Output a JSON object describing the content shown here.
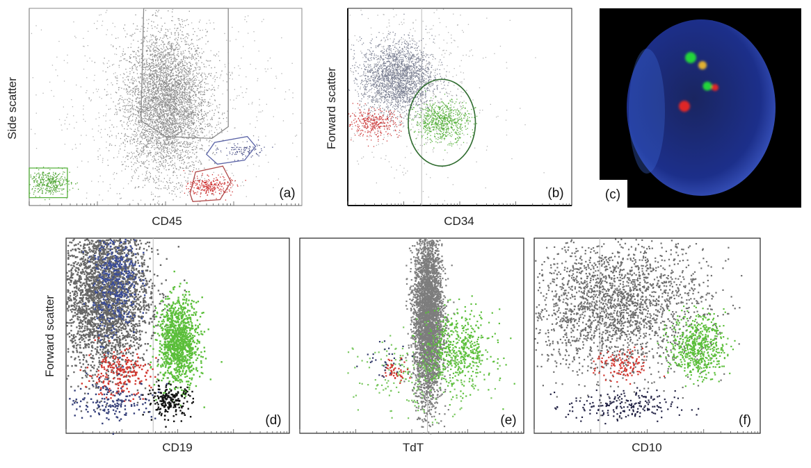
{
  "chart_data": [
    {
      "id": "a",
      "type": "scatter",
      "panel_label": "(a)",
      "xlabel": "CD45",
      "ylabel": "Side scatter",
      "log_x": true,
      "populations": [
        {
          "color": "#8a8a8a",
          "count": 4200,
          "cx": 0.5,
          "cy": 0.52,
          "sx": 0.075,
          "sy": 0.18
        },
        {
          "color": "#b0b0b0",
          "count": 900,
          "cx": 0.5,
          "cy": 0.5,
          "sx": 0.22,
          "sy": 0.25
        },
        {
          "color": "#55a83b",
          "count": 380,
          "cx": 0.07,
          "cy": 0.12,
          "sx": 0.04,
          "sy": 0.03
        },
        {
          "color": "#cc2a2a",
          "count": 260,
          "cx": 0.66,
          "cy": 0.1,
          "sx": 0.04,
          "sy": 0.025
        },
        {
          "color": "#4a5088",
          "count": 90,
          "cx": 0.78,
          "cy": 0.28,
          "sx": 0.04,
          "sy": 0.02
        }
      ],
      "gates": [
        {
          "color": "#8a8a8a",
          "points": [
            [
              0.42,
              1.0
            ],
            [
              0.73,
              1.0
            ],
            [
              0.73,
              0.4
            ],
            [
              0.67,
              0.34
            ],
            [
              0.5,
              0.35
            ],
            [
              0.41,
              0.43
            ]
          ]
        },
        {
          "color": "#5a63a6",
          "points": [
            [
              0.65,
              0.26
            ],
            [
              0.68,
              0.32
            ],
            [
              0.8,
              0.35
            ],
            [
              0.83,
              0.3
            ],
            [
              0.79,
              0.23
            ],
            [
              0.69,
              0.21
            ]
          ]
        },
        {
          "color": "#b04a4a",
          "points": [
            [
              0.59,
              0.06
            ],
            [
              0.61,
              0.17
            ],
            [
              0.71,
              0.2
            ],
            [
              0.74,
              0.12
            ],
            [
              0.7,
              0.03
            ],
            [
              0.6,
              0.02
            ]
          ]
        },
        {
          "color": "#55b03a",
          "points": [
            [
              0.0,
              0.04
            ],
            [
              0.14,
              0.04
            ],
            [
              0.14,
              0.19
            ],
            [
              0.0,
              0.19
            ]
          ]
        }
      ]
    },
    {
      "id": "b",
      "type": "scatter",
      "panel_label": "(b)",
      "xlabel": "CD34",
      "ylabel": "Forward scatter",
      "log_x": true,
      "populations": [
        {
          "color": "#7a7f92",
          "count": 2200,
          "cx": 0.22,
          "cy": 0.65,
          "sx": 0.08,
          "sy": 0.09
        },
        {
          "color": "#b3b3b3",
          "count": 600,
          "cx": 0.3,
          "cy": 0.6,
          "sx": 0.18,
          "sy": 0.25
        },
        {
          "color": "#55b03a",
          "count": 700,
          "cx": 0.42,
          "cy": 0.43,
          "sx": 0.06,
          "sy": 0.05
        },
        {
          "color": "#cc3a3a",
          "count": 350,
          "cx": 0.11,
          "cy": 0.42,
          "sx": 0.06,
          "sy": 0.035
        }
      ],
      "gates": [
        {
          "color": "#2e6b2e",
          "ellipse": [
            0.42,
            0.42,
            0.15,
            0.22
          ]
        }
      ],
      "quadrant_x": 0.33
    },
    {
      "id": "d",
      "type": "scatter",
      "panel_label": "(d)",
      "xlabel": "CD19",
      "ylabel": "Forward  scatter",
      "log_x": true,
      "populations": [
        {
          "color": "#666666",
          "count": 3200,
          "cx": 0.17,
          "cy": 0.72,
          "sx": 0.1,
          "sy": 0.2
        },
        {
          "color": "#3a4c9a",
          "count": 420,
          "cx": 0.22,
          "cy": 0.8,
          "sx": 0.05,
          "sy": 0.15
        },
        {
          "color": "#5bbf3a",
          "count": 1100,
          "cx": 0.5,
          "cy": 0.47,
          "sx": 0.045,
          "sy": 0.11
        },
        {
          "color": "#d2372f",
          "count": 220,
          "cx": 0.23,
          "cy": 0.31,
          "sx": 0.07,
          "sy": 0.06
        },
        {
          "color": "#111111",
          "count": 200,
          "cx": 0.46,
          "cy": 0.17,
          "sx": 0.05,
          "sy": 0.04
        },
        {
          "color": "#36407a",
          "count": 160,
          "cx": 0.2,
          "cy": 0.17,
          "sx": 0.1,
          "sy": 0.05
        }
      ],
      "quadrant_x": 0.39
    },
    {
      "id": "e",
      "type": "scatter",
      "panel_label": "(e)",
      "xlabel": "TdT",
      "ylabel": "",
      "log_x": true,
      "populations": [
        {
          "color": "#7d7d7d",
          "count": 3600,
          "cx": 0.57,
          "cy": 0.6,
          "sx": 0.032,
          "sy": 0.22
        },
        {
          "color": "#5bbf3a",
          "count": 520,
          "cx": 0.7,
          "cy": 0.43,
          "sx": 0.08,
          "sy": 0.1
        },
        {
          "color": "#7ac860",
          "count": 220,
          "cx": 0.53,
          "cy": 0.3,
          "sx": 0.14,
          "sy": 0.1
        },
        {
          "color": "#d2372f",
          "count": 50,
          "cx": 0.42,
          "cy": 0.33,
          "sx": 0.03,
          "sy": 0.03
        },
        {
          "color": "#333a6a",
          "count": 30,
          "cx": 0.38,
          "cy": 0.38,
          "sx": 0.05,
          "sy": 0.05
        }
      ],
      "quadrant_x": 0.57
    },
    {
      "id": "f",
      "type": "scatter",
      "panel_label": "(f)",
      "xlabel": "CD10",
      "ylabel": "",
      "log_x": true,
      "populations": [
        {
          "color": "#6e6e6e",
          "count": 2300,
          "cx": 0.36,
          "cy": 0.66,
          "sx": 0.2,
          "sy": 0.17
        },
        {
          "color": "#5bbf3a",
          "count": 560,
          "cx": 0.72,
          "cy": 0.45,
          "sx": 0.06,
          "sy": 0.08
        },
        {
          "color": "#d2372f",
          "count": 120,
          "cx": 0.39,
          "cy": 0.35,
          "sx": 0.06,
          "sy": 0.04
        },
        {
          "color": "#222244",
          "count": 200,
          "cx": 0.38,
          "cy": 0.14,
          "sx": 0.12,
          "sy": 0.04
        }
      ],
      "quadrant_x": 0.29
    }
  ],
  "fish_image": {
    "panel_label": "(c)",
    "nucleus_color": "#1c2f8a",
    "signal_colors": [
      "#22d43a",
      "#e02828",
      "#e0b030"
    ]
  }
}
